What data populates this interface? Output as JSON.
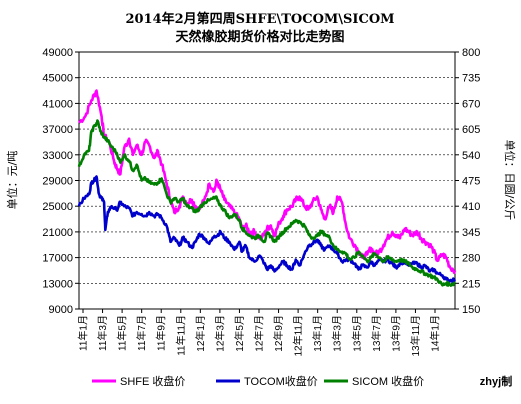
{
  "credit": "zhyj制",
  "chart_data": {
    "type": "line",
    "title": "2014年2月第四周SHFE\\TOCOM\\SICOM",
    "subtitle": "天然橡胶期货价格对比走势图",
    "ylabel_left": "单位：元/吨",
    "ylabel_right": "单位：日圆/公斤",
    "ylim_left": [
      9000,
      49000
    ],
    "yticks_left": [
      "49000",
      "45000",
      "41000",
      "37000",
      "33000",
      "29000",
      "25000",
      "21000",
      "17000",
      "13000",
      "9000"
    ],
    "ylim_right": [
      150,
      800
    ],
    "yticks_right": [
      "800",
      "735",
      "670",
      "605",
      "540",
      "475",
      "410",
      "345",
      "280",
      "215",
      "150"
    ],
    "grid": true,
    "legend": "bottom",
    "x_categories": [
      "11年1月",
      "11年3月",
      "11年5月",
      "11年7月",
      "11年9月",
      "11年11月",
      "12年1月",
      "12年3月",
      "12年5月",
      "12年7月",
      "12年9月",
      "12年11月",
      "13年1月",
      "13年3月",
      "13年5月",
      "13年7月",
      "13年9月",
      "13年11月",
      "14年1月"
    ],
    "series": [
      {
        "name": "SHFE 收盘价",
        "axis": "left",
        "color": "#ff00ff",
        "points": [
          [
            0,
            38000
          ],
          [
            0.5,
            39000
          ],
          [
            1,
            41500
          ],
          [
            1.4,
            43000
          ],
          [
            1.8,
            39000
          ],
          [
            2,
            36000
          ],
          [
            2.4,
            35000
          ],
          [
            2.8,
            32000
          ],
          [
            3,
            31000
          ],
          [
            3.3,
            30000
          ],
          [
            3.6,
            34000
          ],
          [
            4,
            35500
          ],
          [
            4.3,
            33000
          ],
          [
            4.6,
            34500
          ],
          [
            5,
            33000
          ],
          [
            5.3,
            35000
          ],
          [
            5.6,
            34500
          ],
          [
            6,
            32500
          ],
          [
            6.3,
            33500
          ],
          [
            6.6,
            31500
          ],
          [
            7,
            28500
          ],
          [
            7.3,
            26000
          ],
          [
            7.6,
            24000
          ],
          [
            8,
            25000
          ],
          [
            8.3,
            26500
          ],
          [
            8.6,
            25500
          ],
          [
            9,
            26000
          ],
          [
            9.3,
            25000
          ],
          [
            9.6,
            24500
          ],
          [
            10,
            26000
          ],
          [
            10.4,
            28500
          ],
          [
            10.8,
            27500
          ],
          [
            11,
            29000
          ],
          [
            11.3,
            27500
          ],
          [
            11.6,
            26000
          ],
          [
            12,
            25000
          ],
          [
            12.4,
            24000
          ],
          [
            12.8,
            23000
          ],
          [
            13,
            21500
          ],
          [
            13.3,
            22000
          ],
          [
            13.6,
            21000
          ],
          [
            14,
            21000
          ],
          [
            14.4,
            20000
          ],
          [
            14.8,
            20500
          ],
          [
            15,
            21500
          ],
          [
            15.3,
            22000
          ],
          [
            15.6,
            20500
          ],
          [
            16,
            22500
          ],
          [
            16.3,
            23500
          ],
          [
            16.6,
            24500
          ],
          [
            17,
            25000
          ],
          [
            17.3,
            26000
          ],
          [
            17.6,
            26500
          ],
          [
            18,
            25000
          ],
          [
            18.3,
            24500
          ],
          [
            18.6,
            25500
          ],
          [
            19,
            26500
          ],
          [
            19.3,
            24500
          ],
          [
            19.6,
            23000
          ],
          [
            20,
            25000
          ],
          [
            20.3,
            24000
          ],
          [
            20.6,
            26500
          ],
          [
            21,
            25500
          ],
          [
            21.3,
            22000
          ],
          [
            21.6,
            20000
          ],
          [
            22,
            19000
          ],
          [
            22.3,
            18000
          ],
          [
            22.6,
            17000
          ],
          [
            23,
            17500
          ],
          [
            23.3,
            18500
          ],
          [
            23.6,
            17500
          ],
          [
            24,
            18000
          ],
          [
            24.3,
            19000
          ],
          [
            24.6,
            20000
          ],
          [
            25,
            21000
          ],
          [
            25.3,
            20500
          ],
          [
            25.6,
            20000
          ],
          [
            26,
            21500
          ],
          [
            26.3,
            21000
          ],
          [
            26.6,
            20500
          ],
          [
            27,
            21000
          ],
          [
            27.3,
            20000
          ],
          [
            27.6,
            19500
          ],
          [
            28,
            19000
          ],
          [
            28.3,
            18000
          ],
          [
            28.6,
            16500
          ],
          [
            29,
            17500
          ],
          [
            29.3,
            17000
          ],
          [
            29.6,
            15500
          ],
          [
            30,
            15000
          ]
        ]
      },
      {
        "name": "TOCOM收盘价",
        "axis": "right",
        "color": "#0000cc",
        "points": [
          [
            0,
            410
          ],
          [
            0.4,
            430
          ],
          [
            0.8,
            440
          ],
          [
            1,
            470
          ],
          [
            1.2,
            475
          ],
          [
            1.4,
            485
          ],
          [
            1.6,
            440
          ],
          [
            1.8,
            430
          ],
          [
            2,
            420
          ],
          [
            2.1,
            350
          ],
          [
            2.3,
            395
          ],
          [
            2.6,
            410
          ],
          [
            3,
            400
          ],
          [
            3.3,
            420
          ],
          [
            3.6,
            410
          ],
          [
            4,
            405
          ],
          [
            4.3,
            385
          ],
          [
            4.6,
            395
          ],
          [
            5,
            390
          ],
          [
            5.3,
            385
          ],
          [
            5.6,
            395
          ],
          [
            6,
            385
          ],
          [
            6.3,
            390
          ],
          [
            6.6,
            380
          ],
          [
            7,
            360
          ],
          [
            7.3,
            320
          ],
          [
            7.6,
            330
          ],
          [
            8,
            310
          ],
          [
            8.3,
            330
          ],
          [
            8.6,
            320
          ],
          [
            9,
            305
          ],
          [
            9.3,
            320
          ],
          [
            9.6,
            340
          ],
          [
            10,
            330
          ],
          [
            10.4,
            315
          ],
          [
            10.8,
            335
          ],
          [
            11,
            335
          ],
          [
            11.3,
            345
          ],
          [
            11.6,
            330
          ],
          [
            12,
            320
          ],
          [
            12.4,
            300
          ],
          [
            12.8,
            320
          ],
          [
            13,
            295
          ],
          [
            13.3,
            310
          ],
          [
            13.6,
            280
          ],
          [
            14,
            270
          ],
          [
            14.4,
            285
          ],
          [
            14.8,
            265
          ],
          [
            15,
            250
          ],
          [
            15.3,
            260
          ],
          [
            15.6,
            245
          ],
          [
            16,
            260
          ],
          [
            16.3,
            270
          ],
          [
            16.6,
            260
          ],
          [
            17,
            250
          ],
          [
            17.3,
            275
          ],
          [
            17.6,
            260
          ],
          [
            18,
            290
          ],
          [
            18.3,
            310
          ],
          [
            18.6,
            315
          ],
          [
            19,
            325
          ],
          [
            19.3,
            310
          ],
          [
            19.6,
            300
          ],
          [
            20,
            310
          ],
          [
            20.3,
            300
          ],
          [
            20.6,
            290
          ],
          [
            21,
            270
          ],
          [
            21.3,
            275
          ],
          [
            21.6,
            275
          ],
          [
            22,
            265
          ],
          [
            22.3,
            250
          ],
          [
            22.6,
            260
          ],
          [
            23,
            255
          ],
          [
            23.3,
            270
          ],
          [
            23.6,
            260
          ],
          [
            24,
            275
          ],
          [
            24.3,
            270
          ],
          [
            24.6,
            275
          ],
          [
            25,
            265
          ],
          [
            25.3,
            255
          ],
          [
            25.6,
            265
          ],
          [
            26,
            270
          ],
          [
            26.3,
            260
          ],
          [
            26.6,
            265
          ],
          [
            27,
            265
          ],
          [
            27.3,
            255
          ],
          [
            27.6,
            260
          ],
          [
            28,
            245
          ],
          [
            28.3,
            250
          ],
          [
            28.6,
            240
          ],
          [
            29,
            235
          ],
          [
            29.3,
            225
          ],
          [
            29.6,
            222
          ],
          [
            30,
            225
          ]
        ]
      },
      {
        "name": "SICOM 收盘价",
        "axis": "right",
        "color": "#008000",
        "points": [
          [
            0,
            510
          ],
          [
            0.4,
            540
          ],
          [
            0.8,
            550
          ],
          [
            1,
            600
          ],
          [
            1.3,
            615
          ],
          [
            1.5,
            625
          ],
          [
            1.7,
            600
          ],
          [
            2,
            585
          ],
          [
            2.3,
            575
          ],
          [
            2.6,
            560
          ],
          [
            3,
            545
          ],
          [
            3.3,
            520
          ],
          [
            3.6,
            540
          ],
          [
            4,
            525
          ],
          [
            4.3,
            500
          ],
          [
            4.6,
            515
          ],
          [
            5,
            475
          ],
          [
            5.3,
            480
          ],
          [
            5.6,
            470
          ],
          [
            6,
            465
          ],
          [
            6.3,
            470
          ],
          [
            6.6,
            480
          ],
          [
            7,
            440
          ],
          [
            7.3,
            420
          ],
          [
            7.6,
            430
          ],
          [
            8,
            420
          ],
          [
            8.3,
            430
          ],
          [
            8.6,
            410
          ],
          [
            9,
            405
          ],
          [
            9.3,
            395
          ],
          [
            9.6,
            405
          ],
          [
            10,
            420
          ],
          [
            10.4,
            425
          ],
          [
            10.8,
            430
          ],
          [
            11,
            430
          ],
          [
            11.3,
            410
          ],
          [
            11.6,
            400
          ],
          [
            12,
            380
          ],
          [
            12.4,
            390
          ],
          [
            12.8,
            375
          ],
          [
            13,
            355
          ],
          [
            13.3,
            345
          ],
          [
            13.6,
            335
          ],
          [
            14,
            330
          ],
          [
            14.4,
            335
          ],
          [
            14.8,
            320
          ],
          [
            15,
            340
          ],
          [
            15.3,
            335
          ],
          [
            15.6,
            320
          ],
          [
            16,
            335
          ],
          [
            16.3,
            345
          ],
          [
            16.6,
            355
          ],
          [
            17,
            365
          ],
          [
            17.3,
            375
          ],
          [
            17.6,
            370
          ],
          [
            18,
            360
          ],
          [
            18.3,
            340
          ],
          [
            18.6,
            330
          ],
          [
            19,
            335
          ],
          [
            19.3,
            345
          ],
          [
            19.6,
            340
          ],
          [
            20,
            330
          ],
          [
            20.3,
            310
          ],
          [
            20.6,
            300
          ],
          [
            21,
            295
          ],
          [
            21.3,
            290
          ],
          [
            21.6,
            275
          ],
          [
            22,
            280
          ],
          [
            22.3,
            295
          ],
          [
            22.6,
            285
          ],
          [
            23,
            270
          ],
          [
            23.3,
            280
          ],
          [
            23.6,
            290
          ],
          [
            24,
            280
          ],
          [
            24.3,
            270
          ],
          [
            24.6,
            280
          ],
          [
            25,
            275
          ],
          [
            25.3,
            270
          ],
          [
            25.6,
            275
          ],
          [
            26,
            270
          ],
          [
            26.3,
            265
          ],
          [
            26.6,
            255
          ],
          [
            27,
            250
          ],
          [
            27.3,
            245
          ],
          [
            27.6,
            240
          ],
          [
            28,
            235
          ],
          [
            28.3,
            230
          ],
          [
            28.6,
            225
          ],
          [
            29,
            210
          ],
          [
            29.3,
            215
          ],
          [
            29.6,
            212
          ],
          [
            30,
            215
          ]
        ]
      }
    ]
  }
}
